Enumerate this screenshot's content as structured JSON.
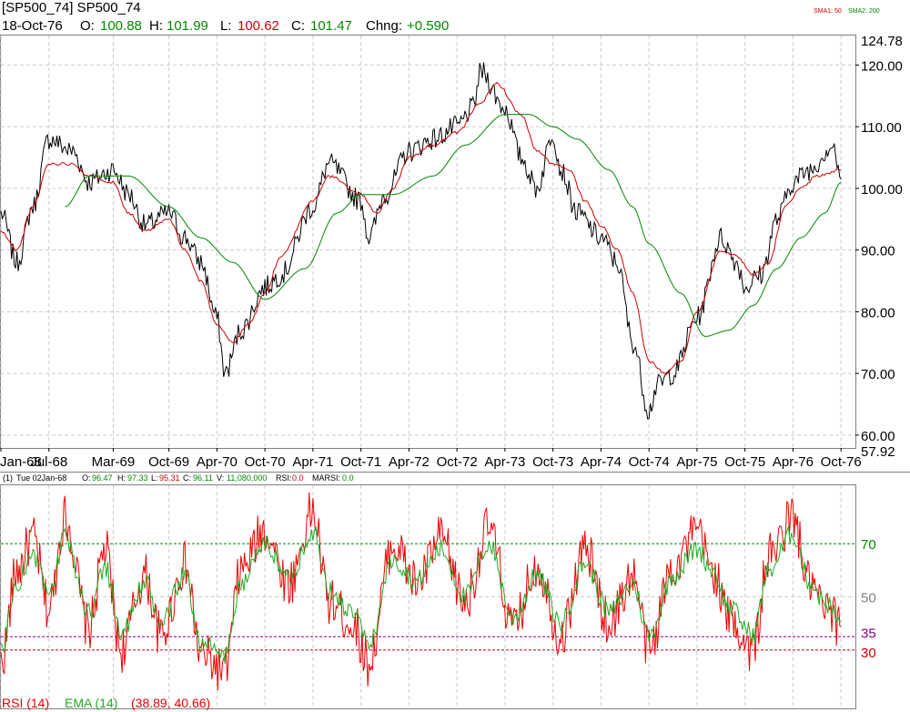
{
  "header": {
    "symbol_line": "[SP500_74] SP500_74",
    "date": "18-Oct-76",
    "o_label": "O:",
    "o_value": "100.88",
    "h_label": "H:",
    "h_value": "101.99",
    "l_label": "L:",
    "l_value": "100.62",
    "c_label": "C:",
    "c_value": "101.47",
    "chng_label": "Chng:",
    "chng_value": "+0.590",
    "sma_legend_1": "SMA1: 50",
    "sma_legend_2": "SMA2: 200"
  },
  "lower_header": {
    "pane_id": "(1)",
    "date": "Tue 02Jan-68",
    "o_label": "O:",
    "o_value": "96.47",
    "h_label": "H:",
    "h_value": "97.33",
    "l_label": "L:",
    "l_value": "95.31",
    "c_label": "C:",
    "c_value": "96.11",
    "v_label": "V:",
    "v_value": "11,080,000",
    "rsi_label": "RSI:",
    "rsi_value": "0.0",
    "marsi_label": "MARSI:",
    "marsi_value": "0.0"
  },
  "rsi_legend": {
    "rsi": "RSI (14)",
    "ema": "EMA (14)",
    "values": "(38.89, 40.66)"
  },
  "colors": {
    "price": "#000000",
    "sma50": "#cc0000",
    "sma200": "#008800",
    "rsi": "#ee0000",
    "ema": "#22aa22",
    "grid": "#cccccc",
    "level70": "#008800",
    "level35": "#880088",
    "level30": "#cc0000",
    "green_text": "#008800",
    "red_text": "#cc0000"
  },
  "chart_data": [
    {
      "type": "line",
      "title": "SP500_74",
      "x_tick_labels": [
        "Jan-68",
        "Jul-68",
        "Mar-69",
        "Oct-69",
        "Apr-70",
        "Oct-70",
        "Apr-71",
        "Oct-71",
        "Apr-72",
        "Oct-72",
        "Apr-73",
        "Oct-73",
        "Apr-74",
        "Oct-74",
        "Apr-75",
        "Oct-75",
        "Apr-76",
        "Oct-76"
      ],
      "y_tick_labels": [
        "60.00",
        "70.00",
        "80.00",
        "90.00",
        "100.00",
        "110.00",
        "120.00"
      ],
      "y_top_label": "124.78",
      "y_bottom_label": "57.92",
      "ylim": [
        57.92,
        124.78
      ],
      "grid": true,
      "series": [
        {
          "name": "SP500_74",
          "x": [
            "Jan-68",
            "Mar-68",
            "May-68",
            "Jul-68",
            "Oct-68",
            "Dec-68",
            "Mar-69",
            "May-69",
            "Jul-69",
            "Oct-69",
            "Dec-69",
            "Feb-70",
            "Apr-70",
            "May-70",
            "Jul-70",
            "Oct-70",
            "Dec-70",
            "Apr-71",
            "Jun-71",
            "Oct-71",
            "Nov-71",
            "Jan-72",
            "Apr-72",
            "Jul-72",
            "Oct-72",
            "Dec-72",
            "Jan-73",
            "Apr-73",
            "Jun-73",
            "Aug-73",
            "Oct-73",
            "Nov-73",
            "Jan-74",
            "Apr-74",
            "Jun-74",
            "Aug-74",
            "Oct-74",
            "Nov-74",
            "Jan-75",
            "Apr-75",
            "Jul-75",
            "Sep-75",
            "Oct-75",
            "Dec-75",
            "Feb-76",
            "Apr-76",
            "Jun-76",
            "Sep-76",
            "Oct-76"
          ],
          "values": [
            96,
            88,
            97,
            108,
            106,
            101,
            103,
            99,
            94,
            96,
            92,
            88,
            79,
            70,
            77,
            84,
            86,
            97,
            104,
            98,
            92,
            99,
            106,
            108,
            110,
            113,
            119,
            113,
            105,
            100,
            109,
            103,
            96,
            92,
            88,
            75,
            64,
            68,
            70,
            79,
            92,
            88,
            84,
            86,
            95,
            101,
            103,
            107,
            101.47
          ]
        },
        {
          "name": "SMA1: 50",
          "x": [
            "Jan-68",
            "Mar-68",
            "May-68",
            "Jul-68",
            "Oct-68",
            "Dec-68",
            "Mar-69",
            "May-69",
            "Jul-69",
            "Oct-69",
            "Dec-69",
            "Feb-70",
            "Apr-70",
            "Jun-70",
            "Aug-70",
            "Oct-70",
            "Dec-70",
            "Apr-71",
            "Jun-71",
            "Oct-71",
            "Dec-71",
            "Feb-72",
            "Apr-72",
            "Jul-72",
            "Oct-72",
            "Jan-73",
            "Mar-73",
            "Jun-73",
            "Aug-73",
            "Oct-73",
            "Dec-73",
            "Feb-74",
            "Apr-74",
            "Jun-74",
            "Aug-74",
            "Oct-74",
            "Dec-74",
            "Feb-75",
            "Apr-75",
            "Jul-75",
            "Sep-75",
            "Nov-75",
            "Jan-76",
            "Mar-76",
            "May-76",
            "Jul-76",
            "Oct-76"
          ],
          "values": [
            93,
            90,
            97,
            104,
            104,
            102,
            101,
            96,
            93,
            95,
            90,
            85,
            78,
            75,
            78,
            83,
            89,
            98,
            102,
            99,
            96,
            100,
            105,
            107,
            109,
            114,
            117,
            112,
            106,
            104,
            103,
            98,
            94,
            90,
            83,
            72,
            70,
            72,
            80,
            90,
            89,
            86,
            88,
            97,
            100,
            102,
            103
          ]
        },
        {
          "name": "SMA2: 200",
          "x": [
            "Sep-68",
            "Dec-68",
            "May-69",
            "Oct-69",
            "Feb-70",
            "Jun-70",
            "Oct-70",
            "Mar-71",
            "Jul-71",
            "Oct-71",
            "Feb-72",
            "Jul-72",
            "Nov-72",
            "Apr-73",
            "Jul-73",
            "Oct-73",
            "Jan-74",
            "May-74",
            "Aug-74",
            "Oct-74",
            "Feb-75",
            "May-75",
            "Aug-75",
            "Nov-75",
            "Feb-76",
            "May-76",
            "Aug-76",
            "Oct-76"
          ],
          "values": [
            97,
            102,
            102,
            97,
            92,
            88,
            82,
            87,
            96,
            99,
            99,
            102,
            107,
            112,
            112,
            110,
            108,
            103,
            97,
            91,
            83,
            76,
            77,
            81,
            87,
            92,
            96,
            101
          ]
        }
      ]
    },
    {
      "type": "line",
      "title": "RSI (14)",
      "y_tick_labels": [
        "30",
        "35",
        "50",
        "70"
      ],
      "reference_lines": [
        70,
        35,
        30
      ],
      "grid": true,
      "series": [
        {
          "name": "RSI (14)",
          "x": [
            "Jan-68",
            "Mar-68",
            "May-68",
            "Jul-68",
            "Sep-68",
            "Dec-68",
            "Feb-69",
            "Apr-69",
            "Jul-69",
            "Sep-69",
            "Dec-69",
            "Feb-70",
            "May-70",
            "Jul-70",
            "Oct-70",
            "Jan-71",
            "Apr-71",
            "Jun-71",
            "Sep-71",
            "Nov-71",
            "Feb-72",
            "May-72",
            "Aug-72",
            "Nov-72",
            "Feb-73",
            "May-73",
            "Aug-73",
            "Nov-73",
            "Feb-74",
            "May-74",
            "Aug-74",
            "Oct-74",
            "Jan-75",
            "Apr-75",
            "Jun-75",
            "Aug-75",
            "Nov-75",
            "Jan-76",
            "Apr-76",
            "Jun-76",
            "Aug-76",
            "Oct-76"
          ],
          "values": [
            25,
            60,
            72,
            45,
            80,
            38,
            68,
            30,
            58,
            35,
            62,
            28,
            22,
            60,
            75,
            55,
            82,
            48,
            40,
            25,
            70,
            55,
            72,
            48,
            76,
            38,
            62,
            35,
            68,
            40,
            58,
            30,
            62,
            74,
            60,
            42,
            30,
            65,
            80,
            55,
            45,
            38.89
          ]
        },
        {
          "name": "EMA (14)",
          "x": [
            "Jan-68",
            "Mar-68",
            "May-68",
            "Jul-68",
            "Sep-68",
            "Dec-68",
            "Feb-69",
            "Apr-69",
            "Jul-69",
            "Sep-69",
            "Dec-69",
            "Feb-70",
            "May-70",
            "Jul-70",
            "Oct-70",
            "Jan-71",
            "Apr-71",
            "Jun-71",
            "Sep-71",
            "Nov-71",
            "Feb-72",
            "May-72",
            "Aug-72",
            "Nov-72",
            "Feb-73",
            "May-73",
            "Aug-73",
            "Nov-73",
            "Feb-74",
            "May-74",
            "Aug-74",
            "Oct-74",
            "Jan-75",
            "Apr-75",
            "Jun-75",
            "Aug-75",
            "Nov-75",
            "Jan-76",
            "Apr-76",
            "Jun-76",
            "Aug-76",
            "Oct-76"
          ],
          "values": [
            30,
            55,
            66,
            50,
            72,
            44,
            62,
            36,
            55,
            40,
            58,
            33,
            28,
            55,
            70,
            57,
            75,
            52,
            44,
            32,
            64,
            56,
            68,
            50,
            70,
            42,
            58,
            40,
            63,
            44,
            55,
            35,
            58,
            68,
            60,
            46,
            36,
            60,
            74,
            56,
            48,
            40.66
          ]
        }
      ]
    }
  ]
}
